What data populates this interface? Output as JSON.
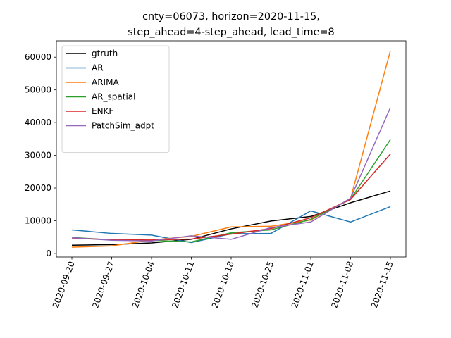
{
  "chart_data": {
    "type": "line",
    "title_lines": [
      "cnty=06073, horizon=2020-11-15,",
      "step_ahead=4-step_ahead, lead_time=8"
    ],
    "x": [
      "2020-09-20",
      "2020-09-27",
      "2020-10-04",
      "2020-10-11",
      "2020-10-18",
      "2020-10-25",
      "2020-11-01",
      "2020-11-08",
      "2020-11-15"
    ],
    "xlabel": "",
    "ylabel": "",
    "ylim": [
      -1100,
      65000
    ],
    "yticks": [
      0,
      10000,
      20000,
      30000,
      40000,
      50000,
      60000
    ],
    "ytick_labels": [
      "0",
      "10000",
      "20000",
      "30000",
      "40000",
      "50000",
      "60000"
    ],
    "grid": false,
    "legend_position": "upper-left",
    "series": [
      {
        "name": "gtruth",
        "color": "#000000",
        "values": [
          2500,
          2700,
          3200,
          4300,
          7500,
          9900,
          11300,
          15500,
          19100
        ]
      },
      {
        "name": "AR",
        "color": "#1f77b4",
        "values": [
          7200,
          6100,
          5600,
          3300,
          6000,
          6100,
          13000,
          9600,
          14300
        ]
      },
      {
        "name": "ARIMA",
        "color": "#ff7f0e",
        "values": [
          1900,
          2300,
          4100,
          5200,
          8100,
          8300,
          10200,
          16800,
          62000
        ]
      },
      {
        "name": "AR_spatial",
        "color": "#2ca02c",
        "values": [
          4900,
          4100,
          4000,
          3500,
          6300,
          7200,
          10400,
          16600,
          34800
        ]
      },
      {
        "name": "ENKF",
        "color": "#d62728",
        "values": [
          4700,
          4200,
          4100,
          4400,
          5900,
          7600,
          10900,
          16500,
          30400
        ]
      },
      {
        "name": "PatchSim_adpt",
        "color": "#9467bd",
        "values": [
          4800,
          4000,
          3800,
          5400,
          4300,
          7900,
          9600,
          16900,
          44600
        ]
      }
    ]
  }
}
